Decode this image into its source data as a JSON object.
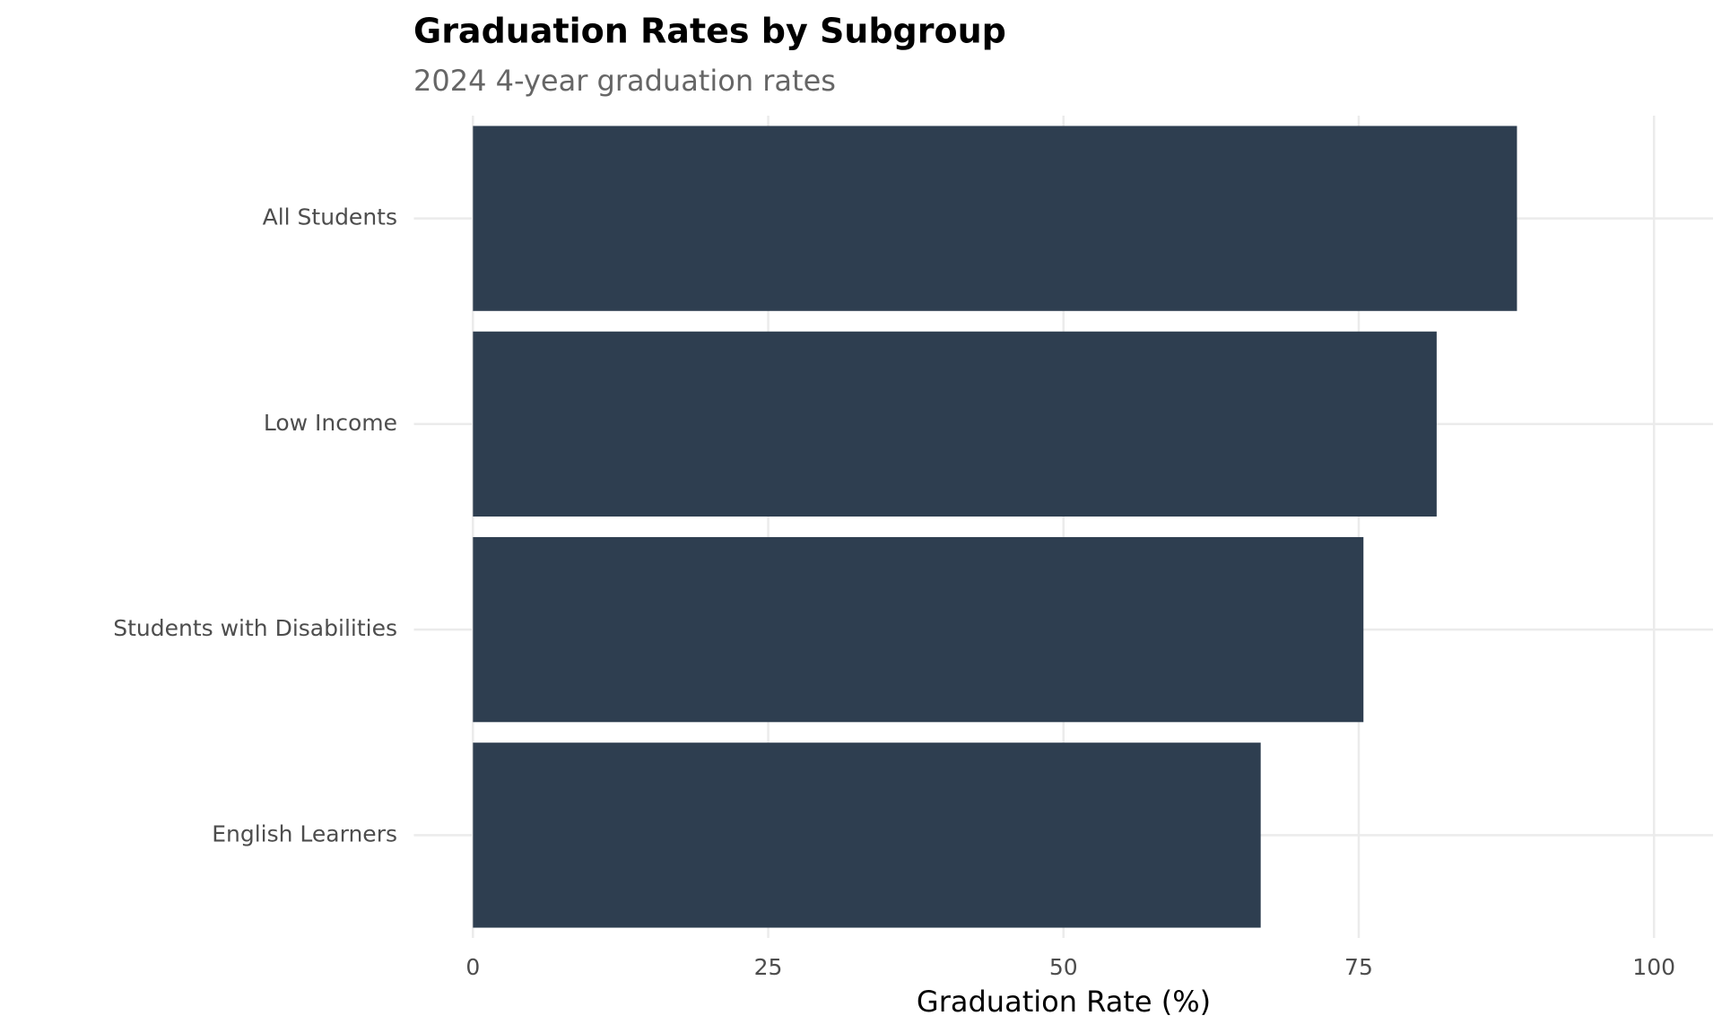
{
  "chart_data": {
    "type": "bar",
    "orientation": "horizontal",
    "title": "Graduation Rates by Subgroup",
    "subtitle": "2024 4-year graduation rates",
    "x_label": "Graduation Rate (%)",
    "categories": [
      "All Students",
      "Low Income",
      "Students with Disabilities",
      "English Learners"
    ],
    "values": [
      88.4,
      81.6,
      75.4,
      66.7
    ],
    "color": "#2e3e50",
    "xlim": [
      -5,
      105
    ],
    "xticks": [
      0,
      25,
      50,
      75,
      100
    ],
    "grid": true
  }
}
